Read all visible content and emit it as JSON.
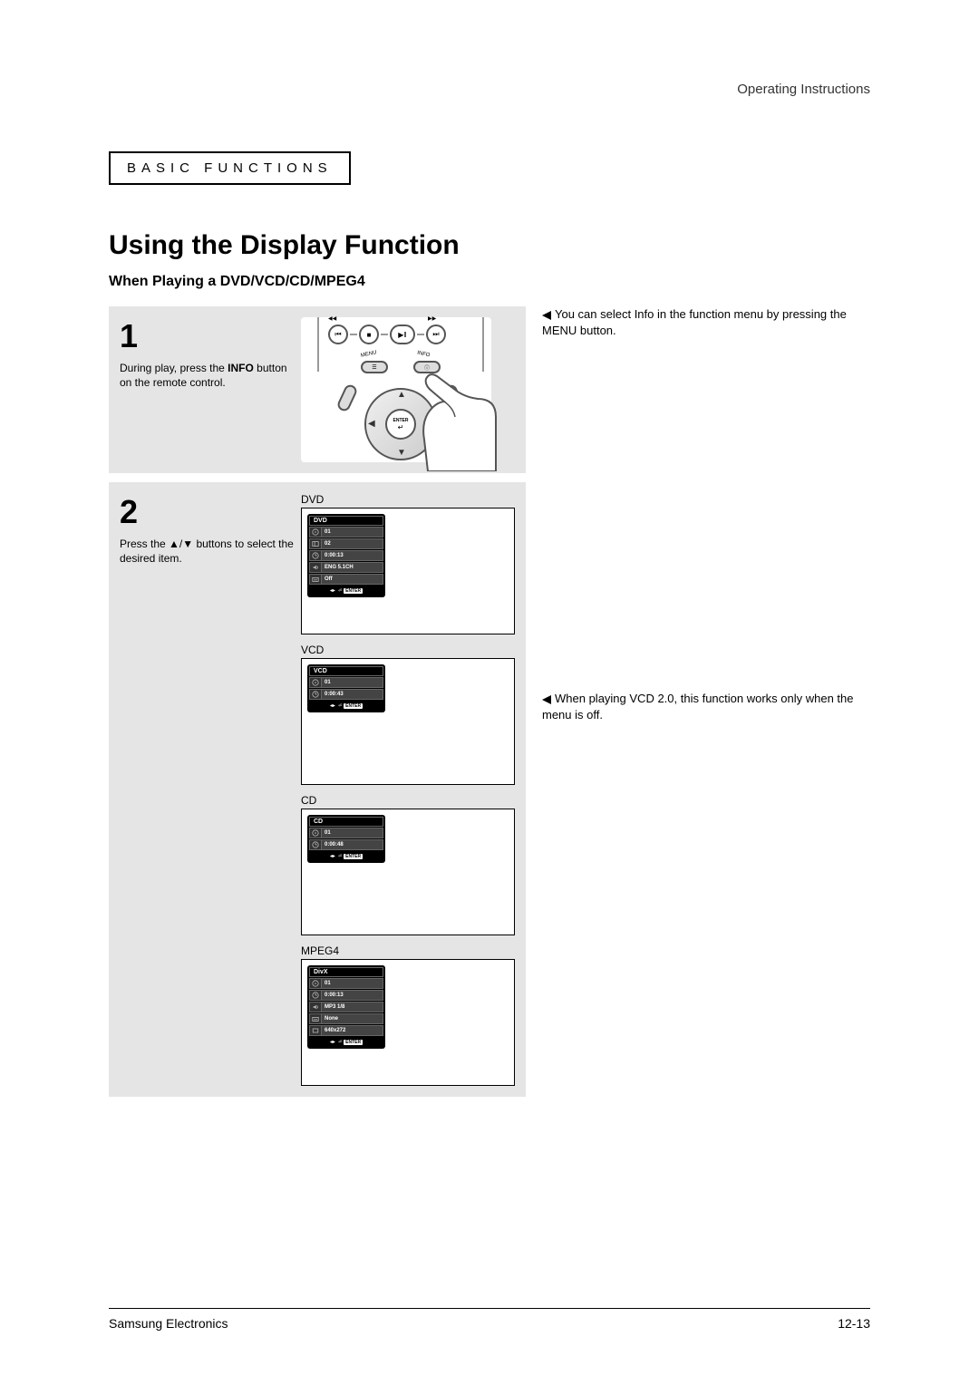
{
  "header": {
    "right": "Operating Instructions"
  },
  "section_box": "BASIC FUNCTIONS",
  "title": "Using the Display Function",
  "subtitle": "When Playing a DVD/VCD/CD/MPEG4",
  "step1": {
    "num": "1",
    "text_pre": "During play, press the ",
    "text_bold": "INFO",
    "text_post": " button on the remote control."
  },
  "note1": "You can select Info in the function menu by pressing the MENU button.",
  "step2": {
    "num": "2",
    "text": "Press the ▲/▼ buttons to select the desired item."
  },
  "note2": "When playing VCD 2.0, this function works only when the menu is off.",
  "remote": {
    "enter_label": "ENTER",
    "menu_label": "MENU",
    "info_label": "INFO"
  },
  "displays": {
    "dvd": {
      "label": "DVD",
      "title": "DVD",
      "rows": [
        {
          "icon": "disc",
          "val": "01"
        },
        {
          "icon": "chapter",
          "val": "02"
        },
        {
          "icon": "clock",
          "val": "0:00:13"
        },
        {
          "icon": "audio",
          "val": "ENG 5.1CH"
        },
        {
          "icon": "sub",
          "val": "Off"
        }
      ],
      "footer_enter": "ENTER"
    },
    "vcd": {
      "label": "VCD",
      "title": "VCD",
      "rows": [
        {
          "icon": "disc",
          "val": "01"
        },
        {
          "icon": "clock",
          "val": "0:00:43"
        }
      ],
      "footer_enter": "ENTER"
    },
    "cd": {
      "label": "CD",
      "title": "CD",
      "rows": [
        {
          "icon": "disc",
          "val": "01"
        },
        {
          "icon": "clock",
          "val": "0:00:48"
        }
      ],
      "footer_enter": "ENTER"
    },
    "mpeg4": {
      "label": "MPEG4",
      "title": "DivX",
      "rows": [
        {
          "icon": "disc",
          "val": "01"
        },
        {
          "icon": "clock",
          "val": "0:00:13"
        },
        {
          "icon": "audio",
          "val": "MP3 1/8"
        },
        {
          "icon": "sub",
          "val": "None"
        },
        {
          "icon": "size",
          "val": "640x272"
        }
      ],
      "footer_enter": "ENTER"
    }
  },
  "footer": {
    "left": "Samsung Electronics",
    "right": "12-13"
  },
  "colors": {
    "panel_bg": "#e5e5e5",
    "osd_bg": "#000000",
    "osd_row_bg": "#444444",
    "osd_text": "#ffffff"
  }
}
